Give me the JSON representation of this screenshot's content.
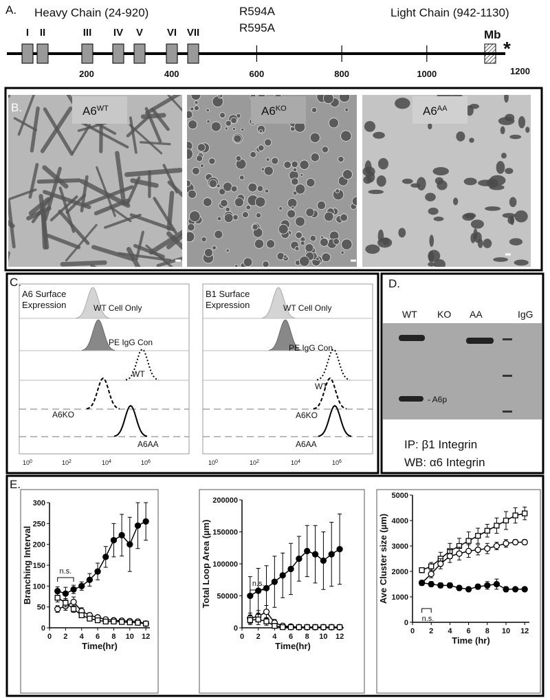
{
  "panel_a": {
    "label": "A.",
    "heavy_chain": "Heavy Chain (24-920)",
    "mutations": [
      "R594A",
      "R595A"
    ],
    "light_chain": "Light Chain (942-1130)",
    "domains": [
      "I",
      "II",
      "III",
      "IV",
      "V",
      "VI",
      "VII"
    ],
    "membrane": "Mb",
    "asterisk": "*",
    "xticks": [
      200,
      400,
      600,
      800,
      1000,
      1200
    ]
  },
  "panel_b": {
    "label": "B.",
    "images": [
      {
        "label": "A6",
        "superscript": "WT"
      },
      {
        "label": "A6",
        "superscript": "KO"
      },
      {
        "label": "A6",
        "superscript": "AA"
      }
    ]
  },
  "panel_c": {
    "label": "C.",
    "plots": [
      {
        "title": [
          "A6 Surface",
          "Expression"
        ],
        "rows": [
          "WT Cell Only",
          "PE IgG Con",
          "WT",
          "A6KO",
          "A6AA"
        ]
      },
      {
        "title": [
          "B1 Surface",
          "Expression"
        ],
        "rows": [
          "WT Cell Only",
          "PE IgG Con",
          "WT",
          "A6KO",
          "A6AA"
        ]
      }
    ],
    "xtick_base": "10",
    "xtick_exponents": [
      "0",
      "2",
      "4",
      "6"
    ]
  },
  "panel_d": {
    "label": "D.",
    "lanes": [
      "WT",
      "KO",
      "AA",
      "IgG"
    ],
    "band_label": "- A6p",
    "ip": "IP: β1 Integrin",
    "wb": "WB: α6 Integrin"
  },
  "panel_e": {
    "label": "E."
  },
  "chart_data": [
    {
      "type": "line",
      "ylabel": "Branching Interval",
      "xlabel": "Time(hr)",
      "annotation": "n.s.",
      "x": [
        1,
        2,
        3,
        4,
        5,
        6,
        7,
        8,
        9,
        10,
        11,
        12
      ],
      "xlim": [
        0,
        12.5
      ],
      "xticks": [
        0,
        2,
        4,
        6,
        8,
        10,
        12
      ],
      "ylim": [
        0,
        300
      ],
      "yticks": [
        0,
        50,
        100,
        150,
        200,
        250,
        300
      ],
      "series": [
        {
          "marker": "filled-circle",
          "color": "#000000",
          "values": [
            88,
            82,
            92,
            100,
            115,
            135,
            170,
            210,
            222,
            200,
            245,
            255
          ],
          "errors": [
            10,
            15,
            10,
            10,
            15,
            20,
            25,
            40,
            50,
            65,
            55,
            45
          ]
        },
        {
          "marker": "open-circle",
          "color": "#000000",
          "values": [
            45,
            52,
            62,
            40,
            30,
            25,
            20,
            18,
            17,
            16,
            15,
            10
          ],
          "errors": [
            8,
            10,
            12,
            8,
            6,
            5,
            5,
            4,
            4,
            4,
            4,
            3
          ]
        },
        {
          "marker": "open-square",
          "color": "#000000",
          "values": [
            72,
            60,
            45,
            30,
            22,
            18,
            15,
            15,
            14,
            13,
            12,
            10
          ],
          "errors": [
            10,
            10,
            8,
            6,
            5,
            4,
            4,
            4,
            4,
            3,
            3,
            3
          ]
        }
      ]
    },
    {
      "type": "line",
      "ylabel": "Total Loop Area (µm)",
      "xlabel": "Time(hr)",
      "annotation": "n.s.",
      "x": [
        1,
        2,
        3,
        4,
        5,
        6,
        7,
        8,
        9,
        10,
        11,
        12
      ],
      "xlim": [
        0,
        12.5
      ],
      "xticks": [
        0,
        2,
        4,
        6,
        8,
        10,
        12
      ],
      "ylim": [
        0,
        200000
      ],
      "yticks": [
        0,
        50000,
        100000,
        150000,
        200000
      ],
      "series": [
        {
          "marker": "filled-circle",
          "color": "#000000",
          "values": [
            50000,
            58000,
            62000,
            72000,
            82000,
            92000,
            108000,
            120000,
            115000,
            105000,
            115000,
            123000
          ],
          "errors": [
            30000,
            35000,
            35000,
            40000,
            35000,
            40000,
            35000,
            40000,
            45000,
            45000,
            50000,
            55000
          ]
        },
        {
          "marker": "open-circle",
          "color": "#000000",
          "values": [
            15000,
            18000,
            25000,
            8000,
            3000,
            2000,
            1000,
            1000,
            1000,
            1000,
            1000,
            1000
          ],
          "errors": [
            8000,
            9000,
            10000,
            5000,
            2000,
            1000,
            1000,
            1000,
            1000,
            1000,
            1000,
            1000
          ]
        },
        {
          "marker": "open-square",
          "color": "#000000",
          "values": [
            12000,
            13000,
            10000,
            3000,
            1000,
            1000,
            1000,
            1000,
            1000,
            1000,
            1000,
            1000
          ],
          "errors": [
            7000,
            8000,
            6000,
            2000,
            1000,
            1000,
            1000,
            1000,
            1000,
            1000,
            1000,
            1000
          ]
        }
      ]
    },
    {
      "type": "line",
      "ylabel": "Ave Cluster size (µm)",
      "xlabel": "Time (hr)",
      "annotation": "n.s.",
      "x": [
        1,
        2,
        3,
        4,
        5,
        6,
        7,
        8,
        9,
        10,
        11,
        12
      ],
      "xlim": [
        0,
        12.5
      ],
      "xticks": [
        0,
        2,
        4,
        6,
        8,
        10,
        12
      ],
      "ylim": [
        0,
        5000
      ],
      "yticks": [
        0,
        1000,
        2000,
        3000,
        4000,
        5000
      ],
      "series": [
        {
          "marker": "open-square",
          "color": "#000000",
          "values": [
            2050,
            2200,
            2500,
            2800,
            3000,
            3200,
            3400,
            3600,
            3800,
            4000,
            4200,
            4280
          ],
          "errors": [
            100,
            150,
            250,
            300,
            300,
            350,
            300,
            250,
            300,
            350,
            300,
            250
          ]
        },
        {
          "marker": "open-circle",
          "color": "#000000",
          "values": [
            1550,
            1900,
            2300,
            2600,
            2700,
            2800,
            2850,
            2900,
            3000,
            3100,
            3150,
            3150
          ],
          "errors": [
            100,
            150,
            200,
            250,
            250,
            250,
            200,
            200,
            150,
            150,
            100,
            100
          ]
        },
        {
          "marker": "filled-circle",
          "color": "#000000",
          "values": [
            1550,
            1500,
            1450,
            1450,
            1350,
            1300,
            1400,
            1450,
            1500,
            1300,
            1300,
            1300
          ],
          "errors": [
            100,
            100,
            100,
            100,
            100,
            80,
            100,
            150,
            200,
            100,
            80,
            80
          ]
        }
      ]
    }
  ]
}
